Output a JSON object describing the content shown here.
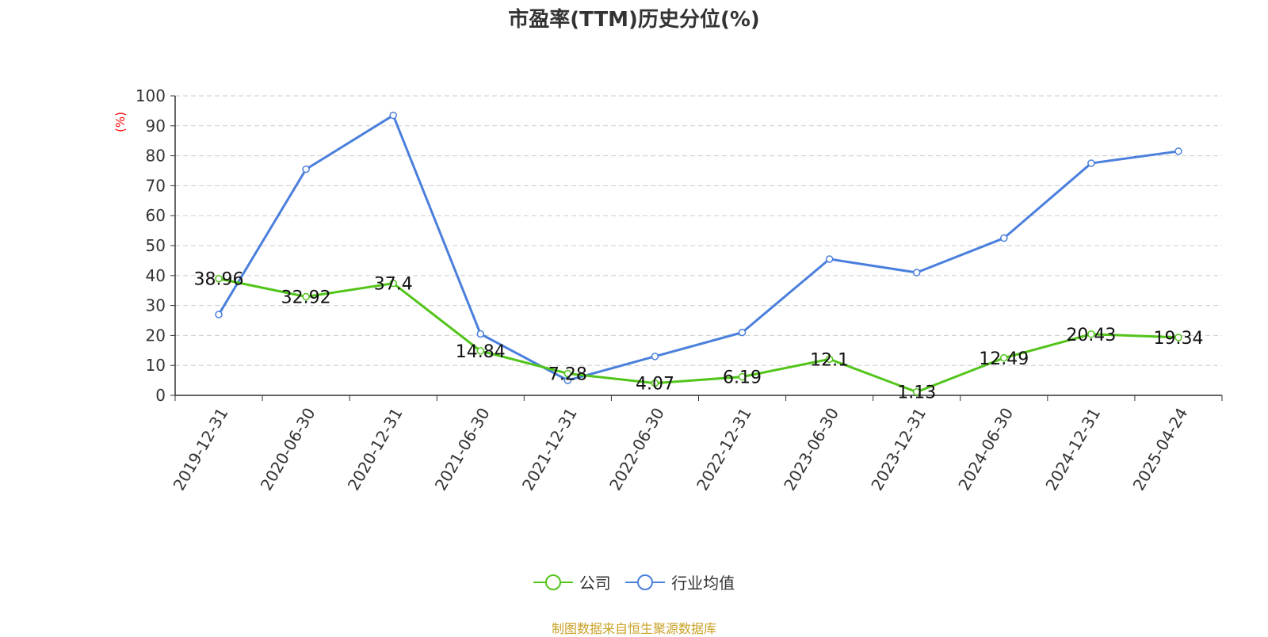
{
  "chart_data": {
    "type": "line",
    "title": "市盈率(TTM)历史分位(%)",
    "y_unit": "(%)",
    "ylim": [
      0,
      100
    ],
    "y_ticks": [
      0,
      10,
      20,
      30,
      40,
      50,
      60,
      70,
      80,
      90,
      100
    ],
    "grid": true,
    "legend_position": "bottom",
    "categories": [
      "2019-12-31",
      "2020-06-30",
      "2020-12-31",
      "2021-06-30",
      "2021-12-31",
      "2022-06-30",
      "2022-12-31",
      "2023-06-30",
      "2023-12-31",
      "2024-06-30",
      "2024-12-31",
      "2025-04-24"
    ],
    "series": [
      {
        "name": "公司",
        "color": "#52c41a",
        "values": [
          38.96,
          32.92,
          37.4,
          14.84,
          7.28,
          4.07,
          6.19,
          12.1,
          1.13,
          12.49,
          20.43,
          19.34
        ],
        "labels": [
          "38.96",
          "32.92",
          "37.4",
          "14.84",
          "7.28",
          "4.07",
          "6.19",
          "12.1",
          "1.13",
          "12.49",
          "20.43",
          "19.34"
        ]
      },
      {
        "name": "行业均值",
        "color": "#4a7fdc",
        "values": [
          27,
          75.5,
          93.5,
          20.5,
          5,
          13,
          21,
          45.5,
          41,
          52.5,
          77.5,
          81.5
        ]
      }
    ]
  },
  "source_text": "制图数据来自恒生聚源数据库"
}
